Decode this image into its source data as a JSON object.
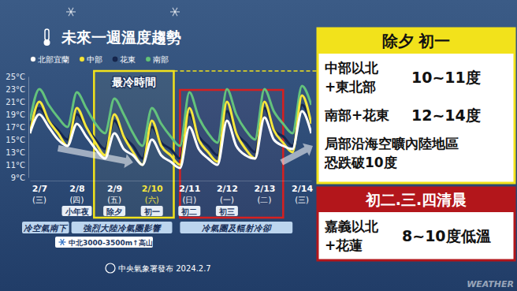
{
  "chart_data": {
    "type": "line",
    "title": "未來一週溫度趨勢",
    "legend": "top",
    "categories": [
      null,
      "2/7",
      null,
      null,
      null,
      "2/8",
      null,
      null,
      null,
      "2/9",
      null,
      null,
      null,
      "2/10",
      null,
      null,
      null,
      "2/11",
      null,
      null,
      null,
      "2/12",
      null,
      null,
      null,
      "2/13",
      null,
      null,
      null,
      "2/14",
      null
    ],
    "tick_sublabels": [
      "(三)",
      "(四)",
      "(五)",
      "(六)",
      "(日)",
      "(一)",
      "(二)",
      "(三)"
    ],
    "tick_notes": [
      null,
      "小年夜",
      "除夕",
      "初一",
      "初二",
      "初三",
      null,
      null
    ],
    "series": [
      {
        "name": "北部宜蘭",
        "color": "#ffffff",
        "values": [
          16,
          19,
          17,
          15,
          14,
          17.5,
          15.5,
          13.5,
          12,
          16,
          13.5,
          12.5,
          11,
          15,
          12.5,
          11.5,
          10.5,
          17,
          13.5,
          12,
          11,
          18,
          14,
          12.5,
          12,
          18.5,
          15,
          14,
          13.5,
          19.5,
          16
        ]
      },
      {
        "name": "中部",
        "color": "#f5e63c",
        "values": [
          16,
          21,
          18,
          16,
          14,
          20,
          17,
          14.5,
          12.5,
          19,
          15.5,
          13,
          11,
          18,
          14,
          12.5,
          11,
          20,
          15,
          13,
          11.5,
          21,
          16,
          13.5,
          12,
          21,
          16.5,
          14.5,
          13,
          22,
          17.5
        ]
      },
      {
        "name": "花東",
        "color": "#16264f",
        "values": [
          17,
          20,
          18,
          16.5,
          15,
          19,
          17,
          15,
          13.5,
          18,
          15.5,
          14,
          12,
          17,
          14.5,
          13.5,
          12,
          19,
          15.5,
          14,
          12.5,
          19.5,
          16,
          14.5,
          13,
          20,
          16.5,
          15.5,
          14,
          20.5,
          17.5
        ]
      },
      {
        "name": "南部",
        "color": "#63c27c",
        "values": [
          18,
          23,
          20.5,
          18.5,
          17,
          22.5,
          20,
          17.5,
          16,
          21.5,
          19,
          16,
          14,
          20,
          17.5,
          15.5,
          14,
          22.5,
          18.5,
          16,
          14.5,
          23,
          19,
          16.5,
          15,
          23,
          19.5,
          17.5,
          16,
          23.5,
          20.5
        ]
      }
    ],
    "ylim": [
      9,
      25
    ],
    "yticks": [
      {
        "value": 9,
        "label": "9°C"
      },
      {
        "value": 11,
        "label": "11°C"
      },
      {
        "value": 13,
        "label": "13°C"
      },
      {
        "value": 15,
        "label": "15°C"
      },
      {
        "value": 17,
        "label": "17°C"
      },
      {
        "value": 19,
        "label": "19°C"
      },
      {
        "value": 21,
        "label": "21°C"
      },
      {
        "value": 23,
        "label": "23°C"
      },
      {
        "value": 25,
        "label": "25°C"
      }
    ],
    "annotations": {
      "coldest": "最冷時間",
      "phases": [
        "冷空氣南下",
        "強烈大陸冷氣團影響",
        "冷氣團及輻射冷卻"
      ],
      "snow": "中北3000-3500m↑高山",
      "source": "中央氣象署發布 2024.2.7",
      "watermark": "WEATHER"
    }
  },
  "panels": [
    {
      "header": "除夕 初一",
      "rows": [
        {
          "label": [
            "中部以北",
            "+東北部"
          ],
          "value": "10~11度"
        },
        {
          "label": [
            "南部+花東"
          ],
          "value": "12~14度"
        },
        {
          "label": [
            "局部沿海空曠內陸地區",
            "恐跌破10度"
          ]
        }
      ]
    },
    {
      "header": "初二.三.四清晨",
      "rows": [
        {
          "label": [
            "嘉義以北",
            "+花蓮"
          ],
          "value": "8~10度低溫"
        }
      ]
    }
  ]
}
